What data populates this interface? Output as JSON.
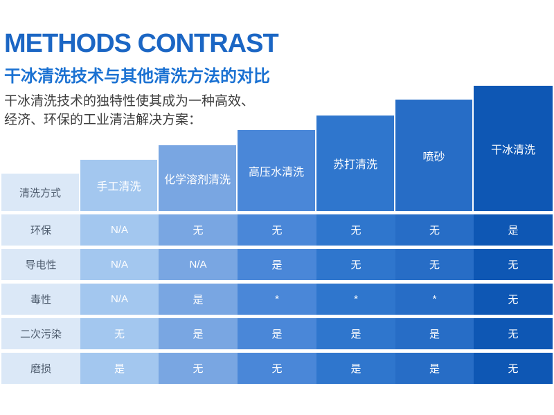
{
  "header": {
    "title": "METHODS CONTRAST",
    "title_color": "#1b66c4",
    "subtitle": "干冰清洗技术与其他清洗方法的对比",
    "subtitle_color": "#1a71d2",
    "description_line1": "干冰清洗技术的独特性使其成为一种高效、",
    "description_line2": "经济、环保的工业清洁解决方案：",
    "description_color": "#3d3d3d"
  },
  "chart_data": {
    "type": "table",
    "style": "staircase-columns-ascending-left-to-right",
    "title": "METHODS CONTRAST",
    "subtitle": "干冰清洗技术与其他清洗方法的对比",
    "corner_label": "清洗方式",
    "columns": [
      {
        "label": "手工清洗",
        "color": "#a3c7ef"
      },
      {
        "label": "化学溶剂清洗",
        "color": "#79a6e2"
      },
      {
        "label": "高压水清洗",
        "color": "#4a87d8"
      },
      {
        "label": "苏打清洗",
        "color": "#2f76cd"
      },
      {
        "label": "喷砂",
        "color": "#276dc6"
      },
      {
        "label": "干冰清洗",
        "color": "#0e57b4"
      }
    ],
    "rows": [
      {
        "label": "环保",
        "values": [
          "N/A",
          "无",
          "无",
          "无",
          "无",
          "是"
        ]
      },
      {
        "label": "导电性",
        "values": [
          "N/A",
          "N/A",
          "是",
          "无",
          "无",
          "无"
        ]
      },
      {
        "label": "毒性",
        "values": [
          "N/A",
          "是",
          "*",
          "*",
          "*",
          "无"
        ]
      },
      {
        "label": "二次污染",
        "values": [
          "无",
          "是",
          "是",
          "是",
          "是",
          "无"
        ]
      },
      {
        "label": "磨损",
        "values": [
          "是",
          "无",
          "无",
          "是",
          "是",
          "无"
        ]
      }
    ],
    "row_header_bg": "#dbe8f7",
    "row_header_text_color": "#4e5c6e",
    "cell_text_color": "#ffffff"
  }
}
